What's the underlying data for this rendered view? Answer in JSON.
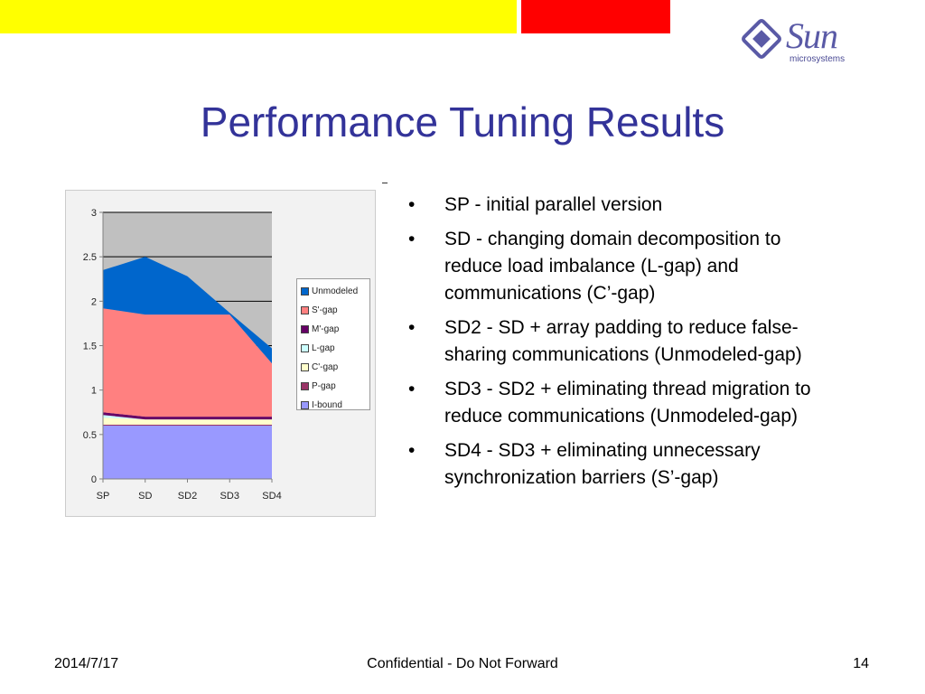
{
  "header": {
    "logo_text": "Sun",
    "logo_sub": "microsystems",
    "colors": {
      "yellow": "#ffff00",
      "red": "#ff0000"
    }
  },
  "title": "Performance Tuning Results",
  "bullets": [
    "SP - initial parallel version",
    "SD - changing domain decomposition to reduce load imbalance (L-gap) and communications (C’-gap)",
    "SD2 - SD + array padding to reduce false-sharing communications (Unmodeled-gap)",
    "SD3 - SD2 + eliminating thread migration to reduce communications (Unmodeled-gap)",
    "SD4 - SD3 + eliminating unnecessary synchronization barriers (S’-gap)"
  ],
  "bullet_glyph": "•",
  "chart_data": {
    "type": "area",
    "stacked": true,
    "categories": [
      "SP",
      "SD",
      "SD2",
      "SD3",
      "SD4"
    ],
    "ylim": [
      0,
      3
    ],
    "yticks": [
      "0",
      "0.5",
      "1",
      "1.5",
      "2",
      "2.5",
      "3"
    ],
    "grid": true,
    "legend_position": "right",
    "series": [
      {
        "name": "I-bound",
        "color": "#9999ff",
        "values": [
          0.6,
          0.6,
          0.6,
          0.6,
          0.6
        ]
      },
      {
        "name": "P-gap",
        "color": "#993366",
        "values": [
          0.01,
          0.01,
          0.01,
          0.01,
          0.01
        ]
      },
      {
        "name": "C'-gap",
        "color": "#ffffcc",
        "values": [
          0.08,
          0.06,
          0.06,
          0.06,
          0.06
        ]
      },
      {
        "name": "L-gap",
        "color": "#ccffff",
        "values": [
          0.03,
          0.0,
          0.0,
          0.0,
          0.0
        ]
      },
      {
        "name": "M'-gap",
        "color": "#660066",
        "values": [
          0.03,
          0.03,
          0.03,
          0.03,
          0.03
        ]
      },
      {
        "name": "S'-gap",
        "color": "#ff8080",
        "values": [
          1.17,
          1.15,
          1.15,
          1.15,
          0.6
        ]
      },
      {
        "name": "Unmodeled",
        "color": "#0066cc",
        "values": [
          0.43,
          0.65,
          0.43,
          0.02,
          0.17
        ]
      }
    ],
    "legend_order": [
      "Unmodeled",
      "S'-gap",
      "M'-gap",
      "L-gap",
      "C'-gap",
      "P-gap",
      "I-bound"
    ],
    "plot_background": "#c0c0c0"
  },
  "footer": {
    "date": "2014/7/17",
    "confidential": "Confidential - Do Not Forward",
    "page": "14"
  }
}
